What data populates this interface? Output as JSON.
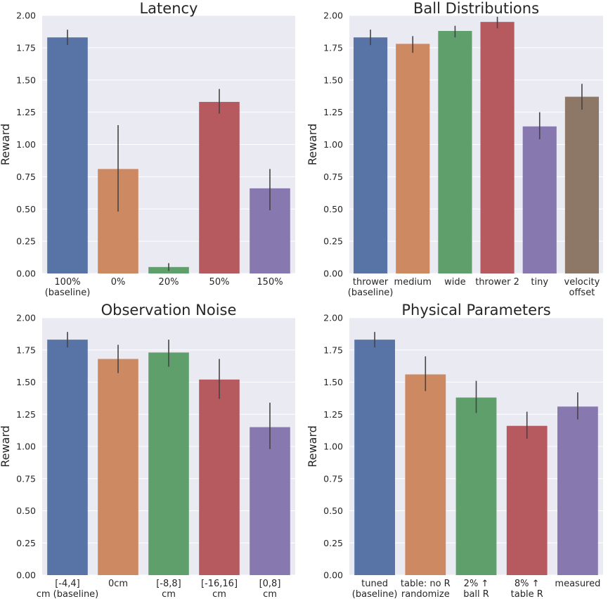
{
  "chart_data": [
    {
      "type": "bar",
      "title": "Latency",
      "ylabel": "Reward",
      "ylim": [
        0,
        2.0
      ],
      "yticks": [
        "0.00",
        "0.25",
        "0.50",
        "0.75",
        "1.00",
        "1.25",
        "1.50",
        "1.75",
        "2.00"
      ],
      "categories": [
        [
          "100%",
          "(baseline)"
        ],
        [
          "0%"
        ],
        [
          "20%"
        ],
        [
          "50%"
        ],
        [
          "150%"
        ]
      ],
      "values": [
        1.83,
        0.81,
        0.05,
        1.33,
        0.66
      ],
      "errors": [
        [
          1.77,
          1.89
        ],
        [
          0.48,
          1.15
        ],
        [
          0.02,
          0.08
        ],
        [
          1.24,
          1.43
        ],
        [
          0.49,
          0.81
        ]
      ]
    },
    {
      "type": "bar",
      "title": "Ball Distributions",
      "ylabel": "Reward",
      "ylim": [
        0,
        2.0
      ],
      "yticks": [
        "0.00",
        "0.25",
        "0.50",
        "0.75",
        "1.00",
        "1.25",
        "1.50",
        "1.75",
        "2.00"
      ],
      "categories": [
        [
          "thrower",
          "(baseline)"
        ],
        [
          "medium"
        ],
        [
          "wide"
        ],
        [
          "thrower 2"
        ],
        [
          "tiny"
        ],
        [
          "velocity",
          "offset"
        ]
      ],
      "values": [
        1.83,
        1.78,
        1.88,
        1.95,
        1.14,
        1.37
      ],
      "errors": [
        [
          1.77,
          1.89
        ],
        [
          1.71,
          1.84
        ],
        [
          1.83,
          1.92
        ],
        [
          1.9,
          1.99
        ],
        [
          1.04,
          1.25
        ],
        [
          1.27,
          1.47
        ]
      ]
    },
    {
      "type": "bar",
      "title": "Observation Noise",
      "ylabel": "Reward",
      "ylim": [
        0,
        2.0
      ],
      "yticks": [
        "0.00",
        "0.25",
        "0.50",
        "0.75",
        "1.00",
        "1.25",
        "1.50",
        "1.75",
        "2.00"
      ],
      "categories": [
        [
          "[-4,4]",
          "cm (baseline)"
        ],
        [
          "0cm"
        ],
        [
          "[-8,8]",
          "cm"
        ],
        [
          "[-16,16]",
          "cm"
        ],
        [
          "[0,8]",
          "cm"
        ]
      ],
      "values": [
        1.83,
        1.68,
        1.73,
        1.52,
        1.15
      ],
      "errors": [
        [
          1.77,
          1.89
        ],
        [
          1.57,
          1.79
        ],
        [
          1.62,
          1.83
        ],
        [
          1.37,
          1.68
        ],
        [
          0.98,
          1.34
        ]
      ]
    },
    {
      "type": "bar",
      "title": "Physical Parameters",
      "ylabel": "Reward",
      "ylim": [
        0,
        2.0
      ],
      "yticks": [
        "0.00",
        "0.25",
        "0.50",
        "0.75",
        "1.00",
        "1.25",
        "1.50",
        "1.75",
        "2.00"
      ],
      "categories": [
        [
          "tuned",
          "(baseline)"
        ],
        [
          "table: no R",
          "randomize"
        ],
        [
          "2% ↑",
          "ball R"
        ],
        [
          "8% ↑",
          "table R"
        ],
        [
          "measured"
        ]
      ],
      "values": [
        1.83,
        1.56,
        1.38,
        1.16,
        1.31
      ],
      "errors": [
        [
          1.77,
          1.89
        ],
        [
          1.43,
          1.7
        ],
        [
          1.26,
          1.51
        ],
        [
          1.06,
          1.27
        ],
        [
          1.21,
          1.42
        ]
      ]
    }
  ],
  "colors": [
    "#5874a6",
    "#cd8962",
    "#5e9f6c",
    "#b65a5f",
    "#8779b0",
    "#8d7766"
  ],
  "style": {
    "axes_bg": "#eaeaf2",
    "grid": "#ffffff",
    "error_bar": "#444444",
    "text": "#262626"
  }
}
